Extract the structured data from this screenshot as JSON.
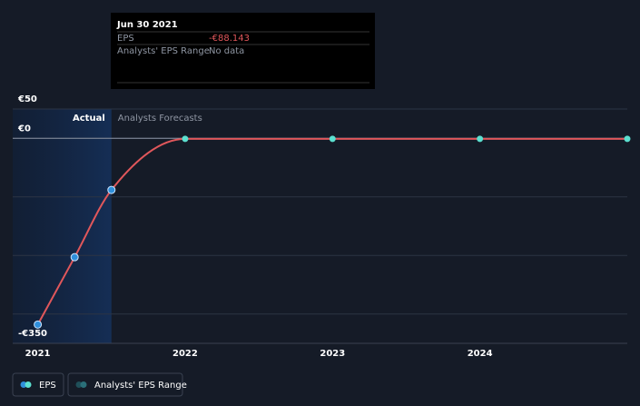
{
  "chart_data": {
    "type": "line",
    "x": [
      2021.0,
      2021.25,
      2021.5,
      2022,
      2023,
      2024,
      2025
    ],
    "series": [
      {
        "name": "EPS",
        "color": "#e0575b",
        "point_color": "#2f8fdb",
        "forecast_color": "#5ce0d0",
        "values": [
          -318,
          -203,
          -88.143,
          -1,
          -1,
          -1,
          -1
        ]
      },
      {
        "name": "Analysts' EPS Range",
        "color": "#2a6f79",
        "values": [
          null,
          null,
          null,
          null,
          null,
          null,
          null
        ]
      }
    ],
    "xlim": [
      2020.83,
      2025
    ],
    "xticks": [
      2021,
      2022,
      2023,
      2024
    ],
    "ylim": [
      -350,
      50
    ],
    "yticks": [
      {
        "value": 50,
        "label": "€50"
      },
      {
        "value": 0,
        "label": "€0"
      },
      {
        "value": -100,
        "label": null
      },
      {
        "value": -200,
        "label": null
      },
      {
        "value": -300,
        "label": null
      },
      {
        "value": -350,
        "label": "-€350"
      }
    ],
    "grid": true,
    "forecast_start": 2021.5,
    "annotations": {
      "actual": "Actual",
      "forecast": "Analysts Forecasts"
    },
    "tooltip": {
      "date": "Jun 30 2021",
      "rows": [
        {
          "label": "EPS",
          "value": "-€88.143"
        },
        {
          "label": "Analysts' EPS Range",
          "value": "No data"
        }
      ]
    }
  }
}
